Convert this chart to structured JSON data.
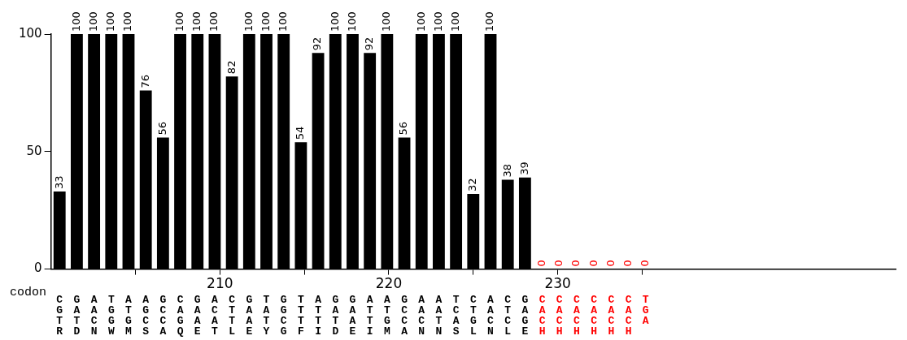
{
  "chart_data": {
    "type": "bar",
    "categories": [
      "C\nG\nT\nR",
      "G\nA\nT\nD",
      "A\nA\nC\nN",
      "T\nG\nG\nW",
      "A\nT\nG\nM",
      "A\nG\nC\nS",
      "G\nC\nC\nA",
      "C\nA\nG\nQ",
      "G\nA\nA\nE",
      "A\nC\nA\nT",
      "C\nT\nT\nL",
      "G\nA\nA\nE",
      "T\nA\nT\nY",
      "G\nG\nC\nG",
      "T\nT\nT\nF",
      "A\nT\nT\nI",
      "G\nA\nT\nD",
      "G\nA\nA\nE",
      "A\nT\nT\nI",
      "A\nT\nG\nM",
      "G\nC\nC\nA",
      "A\nA\nC\nN",
      "A\nA\nT\nN",
      "T\nC\nA\nS",
      "C\nT\nG\nL",
      "A\nA\nC\nN",
      "C\nT\nC\nL",
      "G\nA\nG\nE",
      "C\nA\nC\nH",
      "C\nA\nC\nH",
      "C\nA\nC\nH",
      "C\nA\nC\nH",
      "C\nA\nC\nH",
      "C\nA\nC\nH",
      "T\nG\nA",
      null,
      null,
      null,
      null,
      null,
      null,
      null,
      null,
      null,
      null,
      null,
      null,
      null,
      null
    ],
    "values": [
      33,
      100,
      100,
      100,
      100,
      76,
      56,
      100,
      100,
      100,
      82,
      100,
      100,
      100,
      54,
      92,
      100,
      100,
      92,
      100,
      56,
      100,
      100,
      100,
      32,
      100,
      38,
      39,
      0,
      0,
      0,
      0,
      0,
      0,
      0,
      null,
      null,
      null,
      null,
      null,
      null,
      null,
      null,
      null,
      null,
      null,
      null,
      null,
      null
    ],
    "colors": [
      "#000000",
      "#000000",
      "#000000",
      "#000000",
      "#000000",
      "#000000",
      "#000000",
      "#000000",
      "#000000",
      "#000000",
      "#000000",
      "#000000",
      "#000000",
      "#000000",
      "#000000",
      "#000000",
      "#000000",
      "#000000",
      "#000000",
      "#000000",
      "#000000",
      "#000000",
      "#000000",
      "#000000",
      "#000000",
      "#000000",
      "#000000",
      "#000000",
      "#ff0000",
      "#ff0000",
      "#ff0000",
      "#ff0000",
      "#ff0000",
      "#ff0000",
      "#ff0000",
      null,
      null,
      null,
      null,
      null,
      null,
      null,
      null,
      null,
      null,
      null,
      null,
      null,
      null
    ],
    "ylim": [
      0,
      100
    ],
    "yticks": [
      0,
      50,
      100
    ],
    "x2label": "codon",
    "x2lim": [
      200,
      250
    ],
    "x2ticks": [
      {
        "value": 205,
        "label": null
      },
      210,
      {
        "value": 215,
        "label": null
      },
      220,
      {
        "value": 225,
        "label": null
      },
      230,
      {
        "value": 235,
        "label": null
      }
    ],
    "data_labels": true,
    "grid": false,
    "legend": false
  }
}
